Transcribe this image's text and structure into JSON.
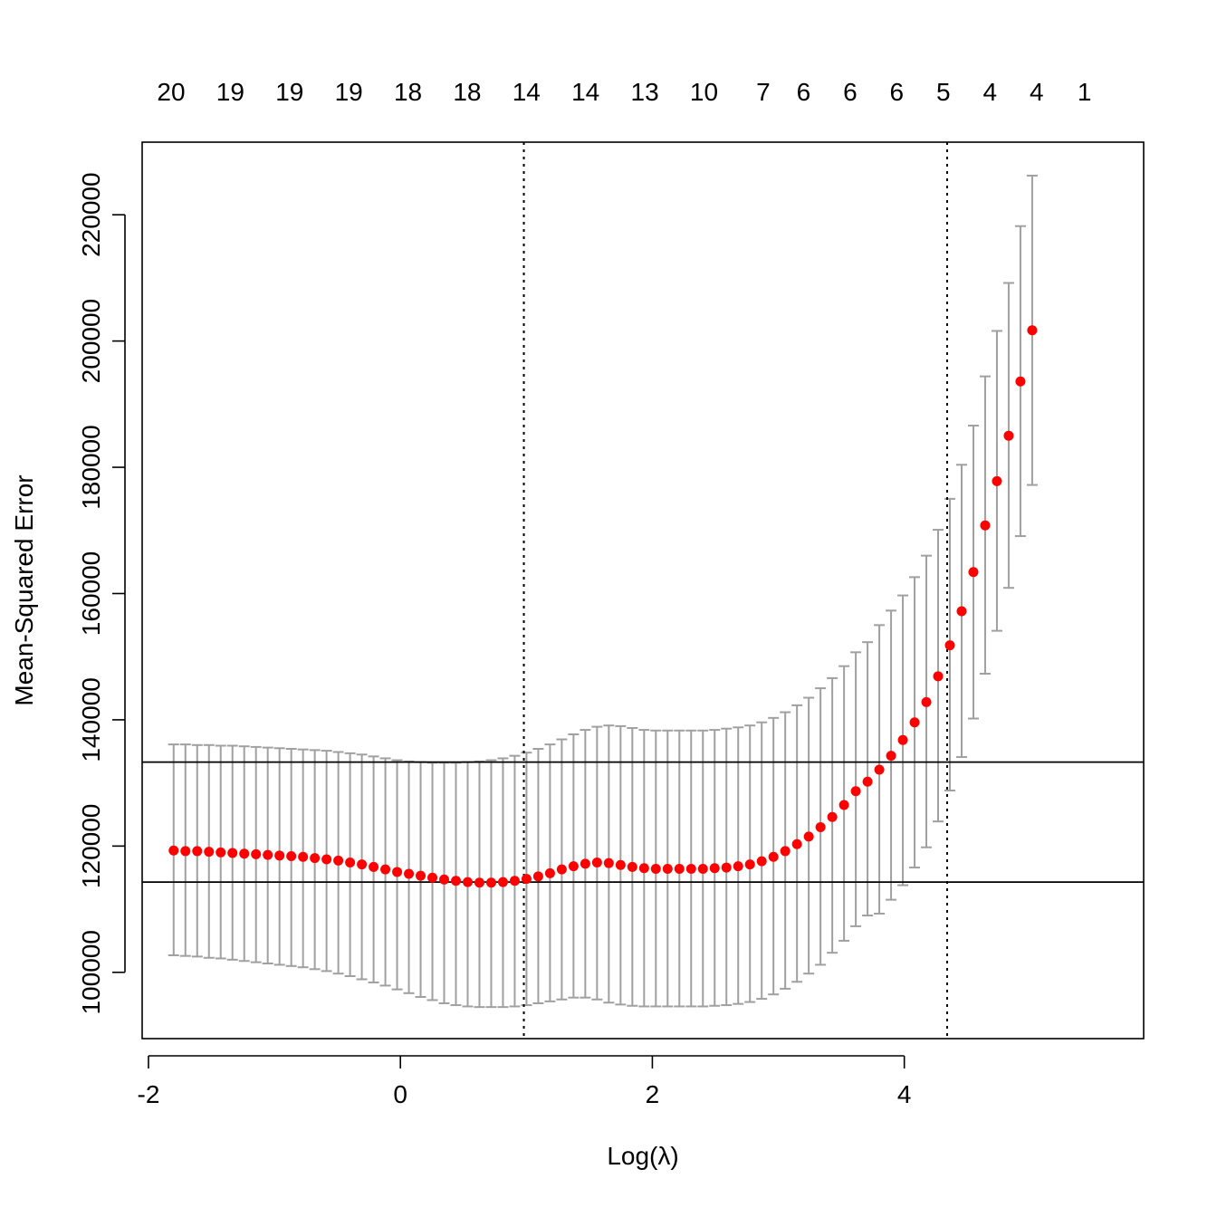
{
  "chart_data": {
    "type": "scatter",
    "xlabel": "Log(λ)",
    "ylabel": "Mean-Squared Error",
    "xlim": [
      -2.05,
      5.9
    ],
    "ylim": [
      89500,
      231500
    ],
    "x_ticks": [
      -2,
      0,
      2,
      4
    ],
    "y_ticks": [
      100000,
      120000,
      140000,
      160000,
      180000,
      200000,
      220000
    ],
    "x_tick_labels": [
      "-2",
      "0",
      "2",
      "4"
    ],
    "y_tick_labels": [
      "100000",
      "120000",
      "140000",
      "160000",
      "180000",
      "200000",
      "220000"
    ],
    "top_axis": {
      "title": "",
      "x": [
        -1.82,
        -1.35,
        -0.88,
        -0.41,
        0.06,
        0.53,
        1.0,
        1.47,
        1.94,
        2.41,
        2.88,
        3.2,
        3.57,
        3.94,
        4.31,
        4.68,
        5.05,
        5.43
      ],
      "labels": [
        "20",
        "19",
        "19",
        "19",
        "18",
        "18",
        "14",
        "14",
        "13",
        "10",
        "7",
        "6",
        "6",
        "6",
        "5",
        "4",
        "4",
        "1"
      ]
    },
    "vlines": [
      0.98,
      4.34
    ],
    "hlines": [
      114300,
      133300
    ],
    "series": [
      {
        "style": "points-with-error-bars",
        "point_color": "#ff0000",
        "errorbar_color": "#a0a0a0",
        "x_start": -1.8,
        "x_step": 0.09336,
        "values": [
          119300,
          119200,
          119200,
          119100,
          119000,
          118900,
          118800,
          118700,
          118600,
          118500,
          118400,
          118300,
          118100,
          117900,
          117700,
          117400,
          117100,
          116700,
          116300,
          115900,
          115600,
          115300,
          115000,
          114700,
          114500,
          114300,
          114200,
          114200,
          114300,
          114500,
          114800,
          115200,
          115700,
          116300,
          116800,
          117200,
          117400,
          117300,
          117000,
          116700,
          116500,
          116400,
          116400,
          116400,
          116400,
          116400,
          116500,
          116600,
          116800,
          117100,
          117600,
          118300,
          119200,
          120300,
          121500,
          123000,
          124600,
          126500,
          128700,
          130200,
          132100,
          134300,
          136800,
          139600,
          142800,
          146900,
          151800,
          157200,
          163400,
          170800,
          177800,
          185000,
          193600,
          201700
        ],
        "upper": [
          136100,
          136100,
          136000,
          136000,
          135900,
          135900,
          135800,
          135700,
          135600,
          135500,
          135400,
          135300,
          135200,
          135100,
          134900,
          134700,
          134500,
          134200,
          133900,
          133600,
          133400,
          133300,
          133200,
          133200,
          133200,
          133300,
          133400,
          133600,
          133900,
          134300,
          134800,
          135400,
          136100,
          136900,
          137700,
          138400,
          138900,
          139100,
          139000,
          138700,
          138400,
          138300,
          138300,
          138300,
          138300,
          138300,
          138400,
          138600,
          138800,
          139100,
          139600,
          140300,
          141200,
          142300,
          143500,
          145000,
          146600,
          148500,
          150700,
          152300,
          155000,
          157300,
          159700,
          162600,
          166000,
          170100,
          175000,
          180400,
          186600,
          194400,
          201600,
          209200,
          218200,
          226200
        ],
        "lower": [
          102700,
          102600,
          102500,
          102300,
          102200,
          102000,
          101800,
          101600,
          101400,
          101200,
          101000,
          100800,
          100500,
          100200,
          99800,
          99400,
          98900,
          98400,
          97900,
          97300,
          96700,
          96100,
          95600,
          95100,
          94800,
          94600,
          94500,
          94500,
          94500,
          94600,
          94800,
          95100,
          95400,
          95700,
          96000,
          96000,
          95700,
          95200,
          94900,
          94700,
          94600,
          94600,
          94600,
          94600,
          94600,
          94600,
          94700,
          94800,
          95000,
          95300,
          95800,
          96500,
          97400,
          98500,
          99800,
          101200,
          103100,
          105000,
          107300,
          109000,
          109300,
          111500,
          113800,
          116600,
          119800,
          123900,
          128800,
          134100,
          140200,
          147300,
          154100,
          160900,
          169100,
          177200
        ]
      }
    ]
  }
}
